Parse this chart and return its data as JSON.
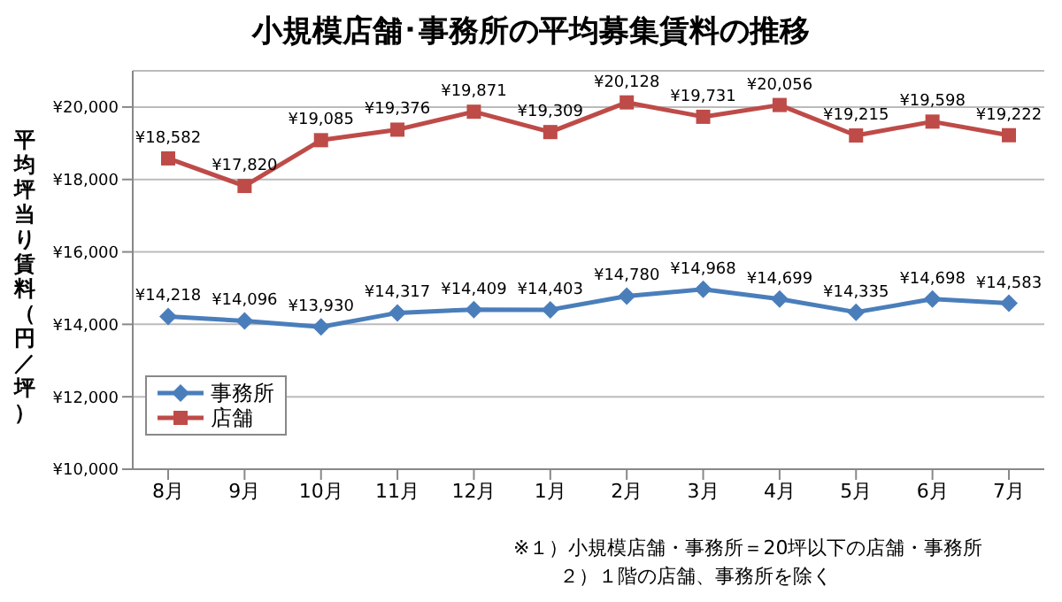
{
  "chart_data": {
    "type": "line",
    "title": "小規模店舗･事務所の平均募集賃料の推移",
    "ylabel": "平均坪当り賃料（円／坪）",
    "categories": [
      "8月",
      "9月",
      "10月",
      "11月",
      "12月",
      "1月",
      "2月",
      "3月",
      "4月",
      "5月",
      "6月",
      "7月"
    ],
    "series": [
      {
        "name": "事務所",
        "color": "#4a7ebb",
        "marker": "diamond",
        "values": [
          14218,
          14096,
          13930,
          14317,
          14409,
          14403,
          14780,
          14968,
          14699,
          14335,
          14698,
          14583
        ],
        "value_labels": [
          "¥14,218",
          "¥14,096",
          "¥13,930",
          "¥14,317",
          "¥14,409",
          "¥14,403",
          "¥14,780",
          "¥14,968",
          "¥14,699",
          "¥14,335",
          "¥14,698",
          "¥14,583"
        ]
      },
      {
        "name": "店舗",
        "color": "#be4b48",
        "marker": "square",
        "values": [
          18582,
          17820,
          19085,
          19376,
          19871,
          19309,
          20128,
          19731,
          20056,
          19215,
          19598,
          19222
        ],
        "value_labels": [
          "¥18,582",
          "¥17,820",
          "¥19,085",
          "¥19,376",
          "¥19,871",
          "¥19,309",
          "¥20,128",
          "¥19,731",
          "¥20,056",
          "¥19,215",
          "¥19,598",
          "¥19,222"
        ]
      }
    ],
    "ylim": [
      10000,
      21000
    ],
    "yticks": [
      {
        "value": 10000,
        "label": "¥10,000"
      },
      {
        "value": 12000,
        "label": "¥12,000"
      },
      {
        "value": 14000,
        "label": "¥14,000"
      },
      {
        "value": 16000,
        "label": "¥16,000"
      },
      {
        "value": 18000,
        "label": "¥18,000"
      },
      {
        "value": 20000,
        "label": "¥20,000"
      }
    ],
    "grid": "y",
    "legend": "bottom left",
    "annotations": [
      "※１）小規模店舗・事務所＝20坪以下の店舗・事務所",
      "２）１階の店舗、事務所を除く"
    ]
  }
}
